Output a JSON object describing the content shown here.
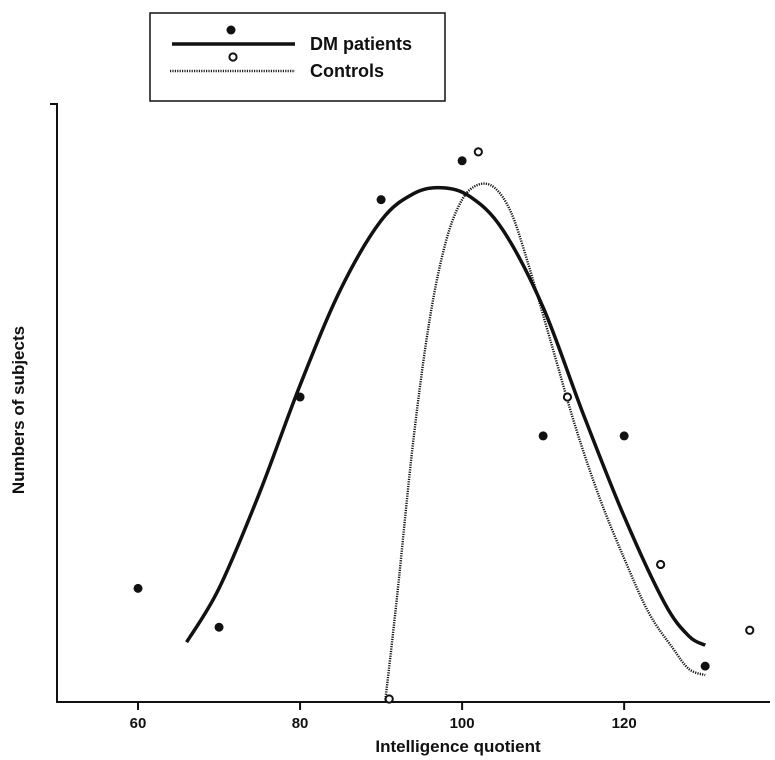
{
  "chart_data": {
    "type": "scatter",
    "xlabel": "Intelligence quotient",
    "ylabel": "Numbers of subjects",
    "xlim": [
      50,
      138
    ],
    "ylim": [
      0,
      10
    ],
    "x_ticks": [
      60,
      80,
      100,
      120
    ],
    "x_tick_labels": [
      "60",
      "80",
      "100",
      "120"
    ],
    "legend_position": "top-left",
    "series": [
      {
        "name": "DM patients",
        "marker": "filled-circle",
        "line": "solid",
        "color": "#111111",
        "points": [
          {
            "x": 60,
            "y": 1.9
          },
          {
            "x": 70,
            "y": 1.25
          },
          {
            "x": 80,
            "y": 5.1
          },
          {
            "x": 90,
            "y": 8.4
          },
          {
            "x": 100,
            "y": 9.05
          },
          {
            "x": 110,
            "y": 4.45
          },
          {
            "x": 120,
            "y": 4.45
          },
          {
            "x": 130,
            "y": 0.6
          }
        ],
        "fit_curve": [
          {
            "x": 66,
            "y": 1.0
          },
          {
            "x": 70,
            "y": 1.9
          },
          {
            "x": 75,
            "y": 3.5
          },
          {
            "x": 80,
            "y": 5.3
          },
          {
            "x": 85,
            "y": 6.9
          },
          {
            "x": 90,
            "y": 8.05
          },
          {
            "x": 94,
            "y": 8.5
          },
          {
            "x": 97.5,
            "y": 8.6
          },
          {
            "x": 101,
            "y": 8.45
          },
          {
            "x": 105,
            "y": 7.9
          },
          {
            "x": 110,
            "y": 6.6
          },
          {
            "x": 115,
            "y": 4.8
          },
          {
            "x": 120,
            "y": 3.1
          },
          {
            "x": 125,
            "y": 1.65
          },
          {
            "x": 128,
            "y": 1.1
          },
          {
            "x": 130,
            "y": 0.95
          }
        ]
      },
      {
        "name": "Controls",
        "marker": "open-circle",
        "line": "dotted",
        "color": "#111111",
        "points": [
          {
            "x": 91,
            "y": 0.05
          },
          {
            "x": 102,
            "y": 9.2
          },
          {
            "x": 113,
            "y": 5.1
          },
          {
            "x": 124.5,
            "y": 2.3
          },
          {
            "x": 135.5,
            "y": 1.2
          }
        ],
        "fit_curve": [
          {
            "x": 90.5,
            "y": 0.0
          },
          {
            "x": 92,
            "y": 1.8
          },
          {
            "x": 94,
            "y": 4.4
          },
          {
            "x": 96,
            "y": 6.4
          },
          {
            "x": 98,
            "y": 7.7
          },
          {
            "x": 100,
            "y": 8.4
          },
          {
            "x": 102,
            "y": 8.65
          },
          {
            "x": 104,
            "y": 8.6
          },
          {
            "x": 106,
            "y": 8.2
          },
          {
            "x": 108,
            "y": 7.4
          },
          {
            "x": 111,
            "y": 6.0
          },
          {
            "x": 114,
            "y": 4.6
          },
          {
            "x": 117,
            "y": 3.4
          },
          {
            "x": 120,
            "y": 2.4
          },
          {
            "x": 123,
            "y": 1.5
          },
          {
            "x": 126,
            "y": 0.9
          },
          {
            "x": 128,
            "y": 0.55
          },
          {
            "x": 130,
            "y": 0.45
          }
        ]
      }
    ]
  }
}
